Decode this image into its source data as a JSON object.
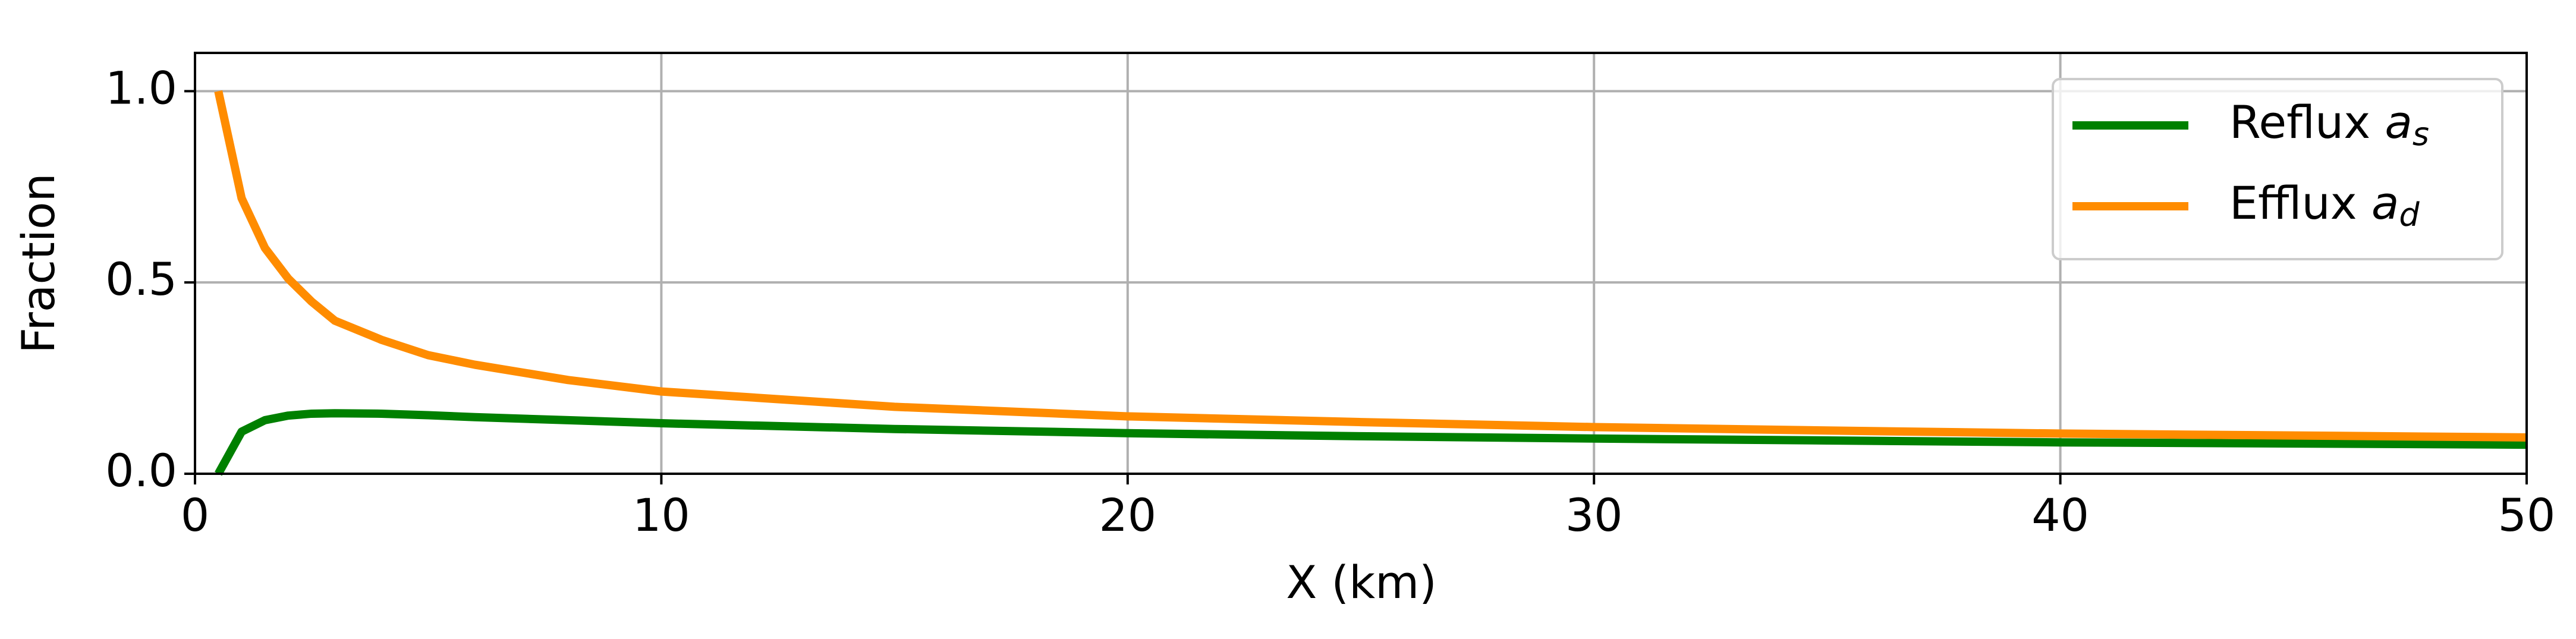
{
  "chart_data": {
    "type": "line",
    "x_label": "X (km)",
    "y_label": "Fraction",
    "x": [
      0.5,
      1,
      1.5,
      2,
      2.5,
      3,
      4,
      5,
      6,
      8,
      10,
      15,
      20,
      25,
      30,
      35,
      40,
      45,
      50
    ],
    "series": [
      {
        "name": "Reflux as",
        "color": "#008000",
        "values": [
          0,
          0.11,
          0.14,
          0.152,
          0.157,
          0.158,
          0.157,
          0.153,
          0.148,
          0.14,
          0.132,
          0.117,
          0.106,
          0.098,
          0.092,
          0.087,
          0.082,
          0.079,
          0.076
        ]
      },
      {
        "name": "Efflux ad",
        "color": "#ff8c00",
        "values": [
          1.0,
          0.72,
          0.59,
          0.51,
          0.45,
          0.4,
          0.35,
          0.31,
          0.285,
          0.245,
          0.215,
          0.175,
          0.15,
          0.135,
          0.122,
          0.113,
          0.105,
          0.1,
          0.095
        ]
      }
    ],
    "xlim": [
      0,
      50
    ],
    "xticks": [
      0,
      10,
      20,
      30,
      40,
      50
    ],
    "ylim": [
      0,
      1.1
    ],
    "yticks": [
      {
        "value": 0,
        "label": "0.0"
      },
      0.5,
      {
        "value": 1,
        "label": "1.0"
      }
    ],
    "grid": true,
    "legend": "upper right"
  }
}
